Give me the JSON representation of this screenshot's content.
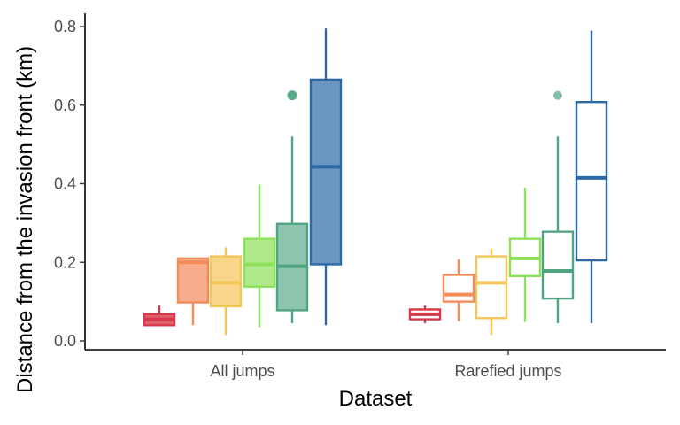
{
  "chart_data": {
    "type": "boxplot",
    "xlabel": "Dataset",
    "ylabel": "Distance from the invasion front (km)",
    "categories": [
      "All jumps",
      "Rarefied jumps"
    ],
    "ylim": [
      -0.02,
      0.84
    ],
    "yticks": [
      0.0,
      0.2,
      0.4,
      0.6,
      0.8
    ],
    "ytick_labels": [
      "0.0",
      "0.2",
      "0.4",
      "0.6",
      "0.8"
    ],
    "grid": false,
    "legend": "none",
    "series_colors": [
      "#d7384a",
      "#f4895a",
      "#f3c55a",
      "#8ee05a",
      "#4fa582",
      "#2b6aa6"
    ],
    "groups": [
      {
        "name": "All jumps",
        "boxes": [
          {
            "whisker_low": 0.04,
            "q1": 0.04,
            "median": 0.055,
            "q3": 0.068,
            "whisker_high": 0.09,
            "outliers": []
          },
          {
            "whisker_low": 0.04,
            "q1": 0.098,
            "median": 0.2,
            "q3": 0.21,
            "whisker_high": 0.21,
            "outliers": []
          },
          {
            "whisker_low": 0.015,
            "q1": 0.088,
            "median": 0.148,
            "q3": 0.215,
            "whisker_high": 0.238,
            "outliers": []
          },
          {
            "whisker_low": 0.035,
            "q1": 0.138,
            "median": 0.195,
            "q3": 0.26,
            "whisker_high": 0.398,
            "outliers": []
          },
          {
            "whisker_low": 0.045,
            "q1": 0.078,
            "median": 0.19,
            "q3": 0.298,
            "whisker_high": 0.52,
            "outliers": [
              0.625
            ]
          },
          {
            "whisker_low": 0.04,
            "q1": 0.195,
            "median": 0.443,
            "q3": 0.665,
            "whisker_high": 0.795,
            "outliers": []
          }
        ]
      },
      {
        "name": "Rarefied jumps",
        "boxes": [
          {
            "whisker_low": 0.045,
            "q1": 0.055,
            "median": 0.068,
            "q3": 0.08,
            "whisker_high": 0.09,
            "outliers": []
          },
          {
            "whisker_low": 0.05,
            "q1": 0.1,
            "median": 0.118,
            "q3": 0.168,
            "whisker_high": 0.208,
            "outliers": []
          },
          {
            "whisker_low": 0.015,
            "q1": 0.058,
            "median": 0.148,
            "q3": 0.215,
            "whisker_high": 0.235,
            "outliers": []
          },
          {
            "whisker_low": 0.048,
            "q1": 0.165,
            "median": 0.21,
            "q3": 0.26,
            "whisker_high": 0.39,
            "outliers": []
          },
          {
            "whisker_low": 0.045,
            "q1": 0.108,
            "median": 0.178,
            "q3": 0.278,
            "whisker_high": 0.52,
            "outliers": [
              0.625
            ]
          },
          {
            "whisker_low": 0.045,
            "q1": 0.205,
            "median": 0.415,
            "q3": 0.608,
            "whisker_high": 0.79,
            "outliers": []
          }
        ]
      }
    ]
  }
}
